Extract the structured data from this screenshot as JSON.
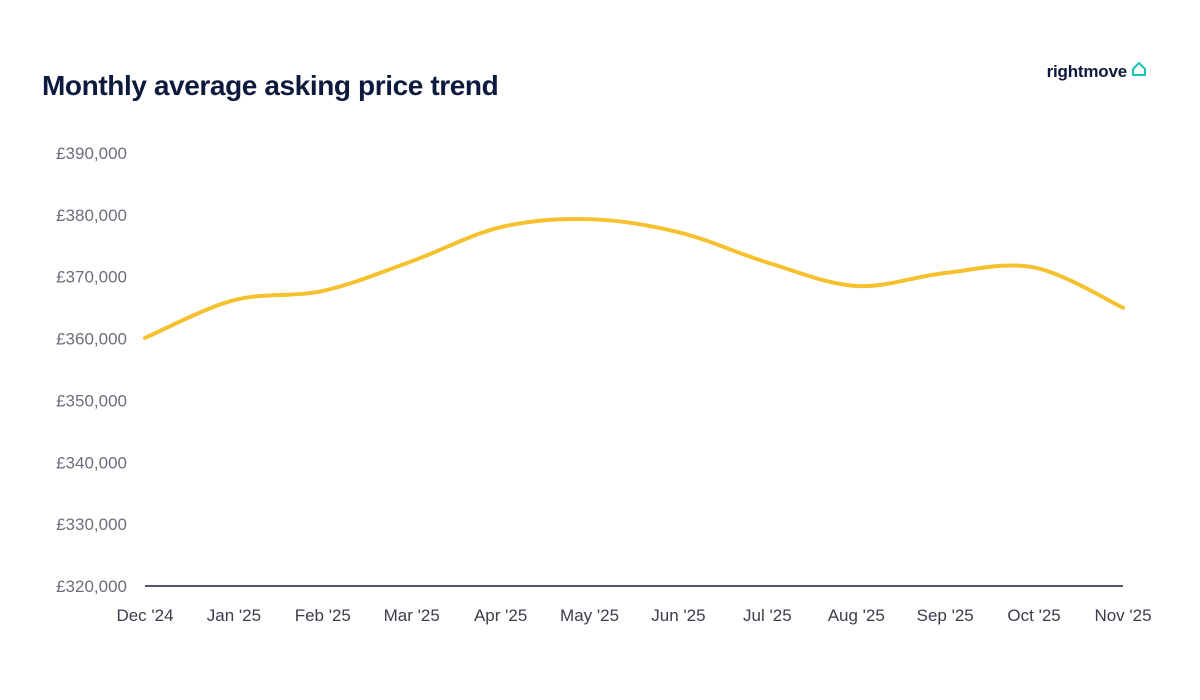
{
  "brand": {
    "name": "rightmove",
    "icon": "house-icon",
    "icon_color": "#17c3b2"
  },
  "chart_data": {
    "type": "line",
    "title": "Monthly average asking price trend",
    "xlabel": "",
    "ylabel": "",
    "categories": [
      "Dec '24",
      "Jan '25",
      "Feb '25",
      "Mar '25",
      "Apr '25",
      "May '25",
      "Jun '25",
      "Jul '25",
      "Aug '25",
      "Sep '25",
      "Oct '25",
      "Nov '25"
    ],
    "series": [
      {
        "values": [
          360100,
          366200,
          367700,
          372500,
          378000,
          379300,
          377200,
          372300,
          368500,
          370600,
          371500,
          365000
        ],
        "color": "#f5c12e"
      }
    ],
    "ylim": [
      320000,
      390000
    ],
    "yticks": [
      320000,
      330000,
      340000,
      350000,
      360000,
      370000,
      380000,
      390000
    ],
    "ytick_labels": [
      "£320,000",
      "£330,000",
      "£340,000",
      "£350,000",
      "£360,000",
      "£370,000",
      "£380,000",
      "£390,000"
    ],
    "grid": false,
    "legend": "none"
  }
}
